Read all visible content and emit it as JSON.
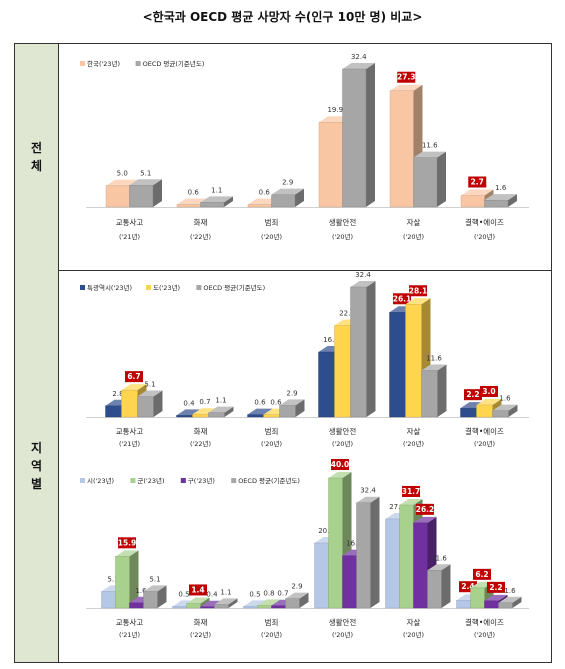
{
  "page_title": "<한국과 OECD 평균 사망자 수(인구 10만 명) 비교>",
  "section_labels": {
    "total": "전체",
    "regional": "지역별"
  },
  "chart_data": [
    {
      "type": "bar",
      "categories": [
        "교통사고",
        "화재",
        "범죄",
        "생활안전",
        "자살",
        "결핵•에이즈"
      ],
      "category_years": [
        "('21년)",
        "('22년)",
        "('20년)",
        "('20년)",
        "('20년)",
        "('20년)"
      ],
      "series": [
        {
          "name": "한국('23년)",
          "color": "#f9c6a4",
          "values": [
            5.0,
            0.6,
            0.6,
            19.9,
            27.3,
            2.7
          ],
          "highlight": [
            false,
            false,
            false,
            false,
            true,
            true
          ]
        },
        {
          "name": "OECD 평균(기준년도)",
          "color": "#a6a6a6",
          "values": [
            5.1,
            1.1,
            2.9,
            32.4,
            11.6,
            1.6
          ],
          "highlight": [
            false,
            false,
            false,
            false,
            false,
            false
          ]
        }
      ],
      "legend": "top-left",
      "grid": false
    },
    {
      "type": "bar",
      "categories": [
        "교통사고",
        "화재",
        "범죄",
        "생활안전",
        "자살",
        "결핵•에이즈"
      ],
      "category_years": [
        "('21년)",
        "('22년)",
        "('20년)",
        "('20년)",
        "('20년)",
        "('20년)"
      ],
      "series": [
        {
          "name": "특광역시('23년)",
          "color": "#2e4d8c",
          "values": [
            2.8,
            0.4,
            0.6,
            16.2,
            26.1,
            2.2
          ],
          "highlight": [
            false,
            false,
            false,
            false,
            true,
            true
          ]
        },
        {
          "name": "도('23년)",
          "color": "#ffd54f",
          "values": [
            6.7,
            0.7,
            0.6,
            22.8,
            28.1,
            3.0
          ],
          "highlight": [
            true,
            false,
            false,
            false,
            true,
            true
          ]
        },
        {
          "name": "OECD 평균(기준년도)",
          "color": "#a6a6a6",
          "values": [
            5.1,
            1.1,
            2.9,
            32.4,
            11.6,
            1.6
          ],
          "highlight": [
            false,
            false,
            false,
            false,
            false,
            false
          ]
        }
      ],
      "legend": "top-left",
      "grid": false
    },
    {
      "type": "bar",
      "categories": [
        "교통사고",
        "화재",
        "범죄",
        "생활안전",
        "자살",
        "결핵•에이즈"
      ],
      "category_years": [
        "('21년)",
        "('22년)",
        "('20년)",
        "('20년)",
        "('20년)",
        "('20년)"
      ],
      "series": [
        {
          "name": "시('23년)",
          "color": "#b4c7e7",
          "values": [
            5.1,
            0.5,
            0.5,
            20.0,
            27.4,
            2.4
          ],
          "highlight": [
            false,
            false,
            false,
            false,
            false,
            true
          ]
        },
        {
          "name": "군('23년)",
          "color": "#a9d18e",
          "values": [
            15.9,
            1.4,
            0.8,
            40.0,
            31.7,
            6.2
          ],
          "highlight": [
            true,
            true,
            false,
            true,
            true,
            true
          ]
        },
        {
          "name": "구('23년)",
          "color": "#7030a0",
          "values": [
            1.6,
            0.4,
            0.7,
            16.1,
            26.2,
            2.2
          ],
          "highlight": [
            false,
            false,
            false,
            false,
            true,
            true
          ]
        },
        {
          "name": "OECD 평균(기준년도)",
          "color": "#a6a6a6",
          "values": [
            5.1,
            1.1,
            2.9,
            32.4,
            11.6,
            1.6
          ],
          "highlight": [
            false,
            false,
            false,
            false,
            false,
            false
          ]
        }
      ],
      "legend": "top-left",
      "grid": false
    }
  ]
}
